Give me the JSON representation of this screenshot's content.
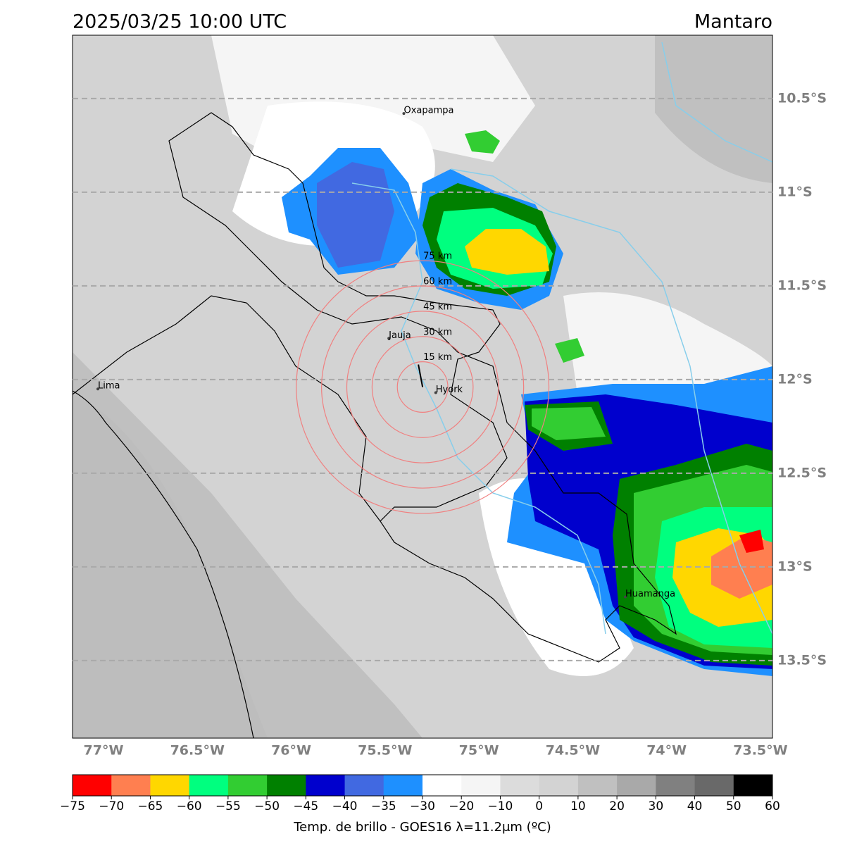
{
  "title": "2025/03/25 10:00 UTC",
  "region": "Mantaro",
  "map": {
    "lonlim": [
      -77.165,
      -73.436
    ],
    "latlim": [
      -10.162,
      -13.914
    ],
    "lat_ticks": [
      {
        "value": -10.5,
        "label": "10.5°S"
      },
      {
        "value": -11,
        "label": "11°S"
      },
      {
        "value": -11.5,
        "label": "11.5°S"
      },
      {
        "value": -12,
        "label": "12°S"
      },
      {
        "value": -12.5,
        "label": "12.5°S"
      },
      {
        "value": -13,
        "label": "13°S"
      },
      {
        "value": -13.5,
        "label": "13.5°S"
      }
    ],
    "lon_ticks": [
      {
        "value": -77,
        "label": "77°W"
      },
      {
        "value": -76.5,
        "label": "76.5°W"
      },
      {
        "value": -76,
        "label": "76°W"
      },
      {
        "value": -75.5,
        "label": "75.5°W"
      },
      {
        "value": -75,
        "label": "75°W"
      },
      {
        "value": -74.5,
        "label": "74.5°W"
      },
      {
        "value": -74,
        "label": "74°W"
      },
      {
        "value": -73.5,
        "label": "73.5°W"
      }
    ],
    "places": [
      {
        "name": "Oxapampa",
        "lon": -75.4,
        "lat": -10.58
      },
      {
        "name": "Jauja",
        "lon": -75.48,
        "lat": -11.78
      },
      {
        "name": "Hyork",
        "lon": -75.23,
        "lat": -12.07
      },
      {
        "name": "Lima",
        "lon": -77.03,
        "lat": -12.05
      },
      {
        "name": "Huamanga",
        "lon": -74.22,
        "lat": -13.16
      }
    ],
    "rings": {
      "center": {
        "lon": -75.3,
        "lat": -12.04
      },
      "radii": [
        {
          "value": 15,
          "label": "15 km"
        },
        {
          "value": 30,
          "label": "30 km"
        },
        {
          "value": 45,
          "label": "45 km"
        },
        {
          "value": 60,
          "label": "60 km"
        },
        {
          "value": 75,
          "label": "75 km"
        }
      ],
      "color": "#f08080"
    }
  },
  "colorbar": {
    "label": "Temp. de brillo - GOES16 λ=11.2μm (ºC)",
    "ticks": [
      {
        "value": -75,
        "label": "−75"
      },
      {
        "value": -70,
        "label": "−70"
      },
      {
        "value": -65,
        "label": "−65"
      },
      {
        "value": -60,
        "label": "−60"
      },
      {
        "value": -55,
        "label": "−55"
      },
      {
        "value": -50,
        "label": "−50"
      },
      {
        "value": -45,
        "label": "−45"
      },
      {
        "value": -40,
        "label": "−40"
      },
      {
        "value": -35,
        "label": "−35"
      },
      {
        "value": -30,
        "label": "−30"
      },
      {
        "value": -20,
        "label": "−20"
      },
      {
        "value": -10,
        "label": "−10"
      },
      0,
      10,
      20,
      30,
      40,
      50,
      60
    ],
    "colors": [
      "#ff0000",
      "#ff7f50",
      "#ffd700",
      "#00ff7f",
      "#32cd32",
      "#008000",
      "#0000cd",
      "#4169e1",
      "#1e90ff",
      "#ffffff",
      "#f5f5f5",
      "#dcdcdc",
      "#d3d3d3",
      "#c0c0c0",
      "#a9a9a9",
      "#808080",
      "#696969",
      "#000000"
    ]
  }
}
